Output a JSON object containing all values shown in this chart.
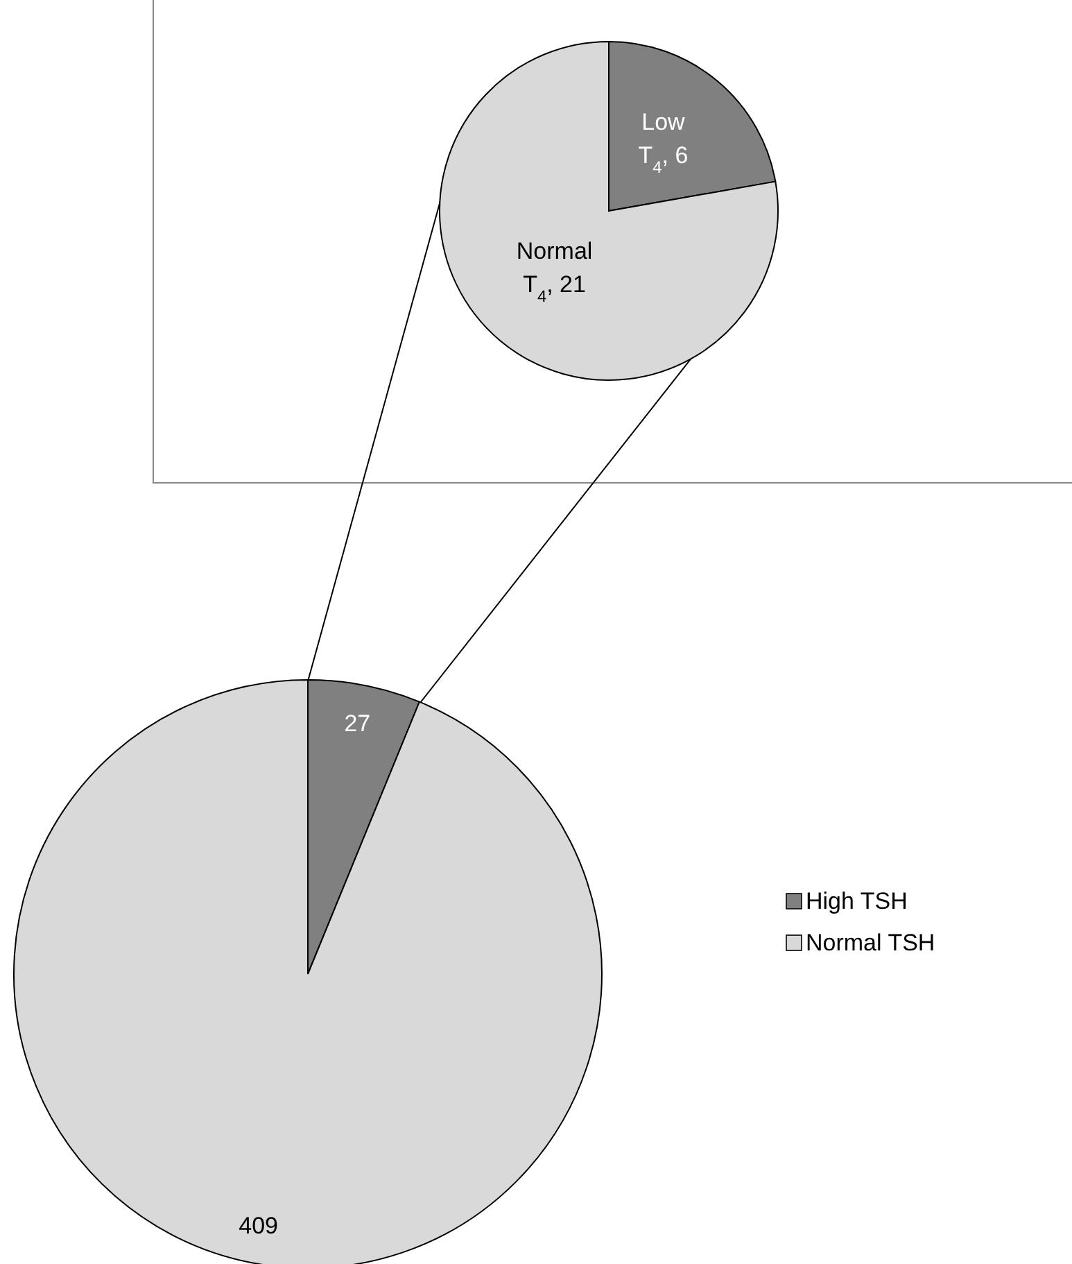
{
  "chart_data": [
    {
      "type": "pie",
      "categories": [
        "Low T$_{4}$",
        "Normal T$_{4}$"
      ],
      "values": [
        6,
        21
      ],
      "value_labels": [
        ", 6",
        ", 21"
      ],
      "colors": [
        "#808080",
        "#d9d9d9"
      ],
      "legend": false
    },
    {
      "type": "pie",
      "categories": [
        "High TSH",
        "Normal TSH"
      ],
      "values": [
        27,
        409
      ],
      "colors": [
        "#808080",
        "#d9d9d9"
      ],
      "data_labels": true,
      "legend": "right"
    }
  ]
}
